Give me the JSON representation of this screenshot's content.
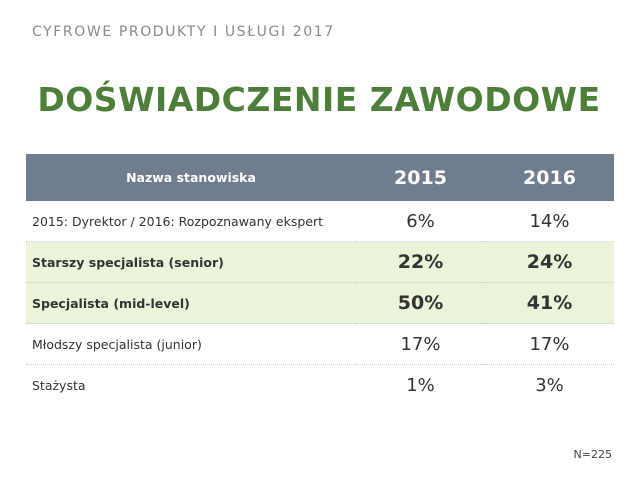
{
  "header": {
    "subtitle": "CYFROWE PRODUKTY I USŁUGI 2017"
  },
  "title": "DOŚWIADCZENIE ZAWODOWE",
  "table": {
    "columns": [
      "Nazwa stanowiska",
      "2015",
      "2016"
    ],
    "rows": [
      {
        "name": "2015: Dyrektor / 2016: Rozpoznawany ekspert",
        "v2015": "6%",
        "v2016": "14%"
      },
      {
        "name": "Starszy specjalista (senior)",
        "v2015": "22%",
        "v2016": "24%"
      },
      {
        "name": "Specjalista (mid-level)",
        "v2015": "50%",
        "v2016": "41%"
      },
      {
        "name": "Młodszy specjalista (junior)",
        "v2015": "17%",
        "v2016": "17%"
      },
      {
        "name": "Stażysta",
        "v2015": "1%",
        "v2016": "3%"
      }
    ]
  },
  "footnote": "N=225",
  "colors": {
    "title": "#4d7f3a",
    "header_row": "#6f7d8e",
    "highlight_row": "#e9f4d9"
  }
}
